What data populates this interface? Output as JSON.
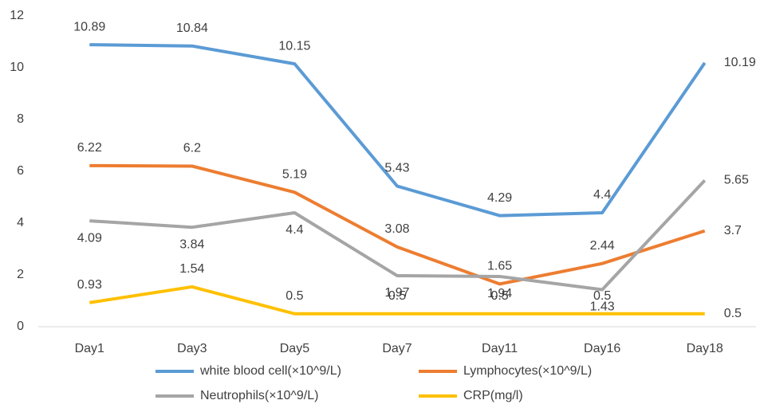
{
  "chart_data": {
    "type": "line",
    "categories": [
      "Day1",
      "Day3",
      "Day5",
      "Day7",
      "Day11",
      "Day16",
      "Day18"
    ],
    "series": [
      {
        "name": "white blood cell(×10^9/L)",
        "color": "#5b9bd5",
        "values": [
          10.89,
          10.84,
          10.15,
          5.43,
          4.29,
          4.4,
          10.19
        ]
      },
      {
        "name": "Lymphocytes(×10^9/L)",
        "color": "#ed7d31",
        "values": [
          6.22,
          6.2,
          5.19,
          3.08,
          1.65,
          2.44,
          3.7
        ]
      },
      {
        "name": "Neutrophils(×10^9/L)",
        "color": "#a5a5a5",
        "values": [
          4.09,
          3.84,
          4.4,
          1.97,
          1.94,
          1.43,
          5.65
        ]
      },
      {
        "name": "CRP(mg/l)",
        "color": "#ffc000",
        "values": [
          0.93,
          1.54,
          0.5,
          0.5,
          0.5,
          0.5,
          0.5
        ]
      }
    ],
    "ylim": [
      0,
      12
    ],
    "yticks": [
      0,
      2,
      4,
      6,
      8,
      10,
      12
    ],
    "grid": false,
    "legend": "bottom"
  }
}
